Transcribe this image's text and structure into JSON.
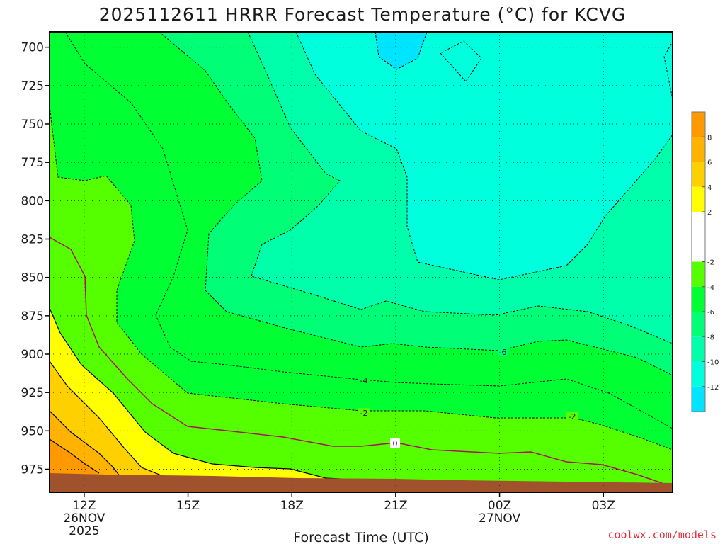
{
  "chart_data": {
    "type": "heatmap",
    "title": "2025112611 HRRR Forecast Temperature (°C) for KCVG",
    "xlabel": "Forecast Time (UTC)",
    "ylabel": "",
    "x_ticks": [
      {
        "label": "12Z",
        "sub1": "26NOV",
        "sub2": "2025"
      },
      {
        "label": "15Z",
        "sub1": "",
        "sub2": ""
      },
      {
        "label": "18Z",
        "sub1": "",
        "sub2": ""
      },
      {
        "label": "21Z",
        "sub1": "",
        "sub2": ""
      },
      {
        "label": "00Z",
        "sub1": "27NOV",
        "sub2": ""
      },
      {
        "label": "03Z",
        "sub1": "",
        "sub2": ""
      }
    ],
    "x_hours": [
      12,
      15,
      18,
      21,
      24,
      27
    ],
    "xlim_hours": [
      11,
      29
    ],
    "y_ticks": [
      "700",
      "725",
      "750",
      "775",
      "800",
      "825",
      "850",
      "875",
      "900",
      "925",
      "950",
      "975"
    ],
    "y_values": [
      700,
      725,
      750,
      775,
      800,
      825,
      850,
      875,
      900,
      925,
      950,
      975
    ],
    "ylim_hpa": [
      690,
      990
    ],
    "y_inverted": true,
    "grid": true,
    "colorbar": {
      "position": "right",
      "tick_labels": [
        "8",
        "6",
        "4",
        "2",
        "-2",
        "-4",
        "-6",
        "-8",
        "-10",
        "-12"
      ],
      "tick_values": [
        8,
        6,
        4,
        2,
        -2,
        -4,
        -6,
        -8,
        -10,
        -12
      ],
      "bins": [
        {
          "min": 8,
          "max": 10,
          "color": "#ff9900"
        },
        {
          "min": 6,
          "max": 8,
          "color": "#ffb300"
        },
        {
          "min": 4,
          "max": 6,
          "color": "#ffd000"
        },
        {
          "min": 2,
          "max": 4,
          "color": "#ffff00"
        },
        {
          "min": -2,
          "max": 2,
          "color": "#ffffff"
        },
        {
          "min": -4,
          "max": -2,
          "color": "#55ff00"
        },
        {
          "min": -6,
          "max": -4,
          "color": "#00ff33"
        },
        {
          "min": -8,
          "max": -6,
          "color": "#00ff77"
        },
        {
          "min": -10,
          "max": -8,
          "color": "#00ffaa"
        },
        {
          "min": -12,
          "max": -10,
          "color": "#00ffdd"
        },
        {
          "min": -14,
          "max": -12,
          "color": "#00e5ff"
        }
      ]
    },
    "contour_labels": [
      "-6",
      "-4",
      "-2",
      "0",
      "-2"
    ],
    "colors": {
      "ground": "#a0522d",
      "freezing_line": "#b0105a",
      "positive_contour": "#000000",
      "negative_contour": "#000000"
    }
  },
  "credit": "coolwx.com/models"
}
